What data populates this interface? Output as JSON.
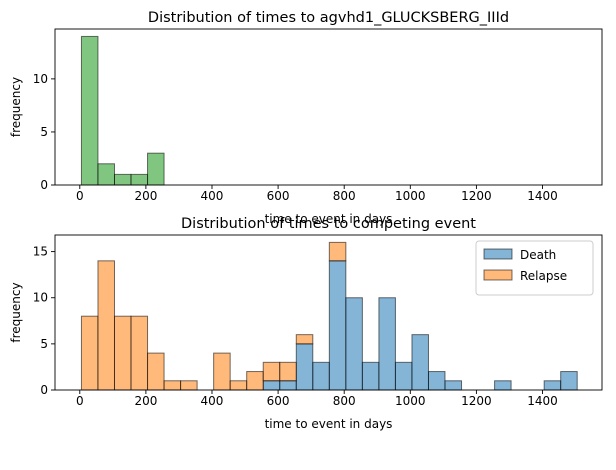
{
  "chart_data": [
    {
      "type": "bar",
      "title": "Distribution of times to agvhd1_GLUCKSBERG_IIId",
      "xlabel": "time to event in days",
      "ylabel": "frequency",
      "xlim": [
        -75,
        1580
      ],
      "ylim": [
        0,
        14.7
      ],
      "xticks": [
        0,
        200,
        400,
        600,
        800,
        1000,
        1200,
        1400
      ],
      "yticks": [
        0,
        5,
        10
      ],
      "bin_edges": [
        5,
        55,
        105,
        155,
        205,
        255,
        305,
        355,
        405,
        455,
        505,
        555,
        605,
        655,
        705,
        755,
        805,
        855,
        905,
        955,
        1005,
        1055,
        1105,
        1155,
        1205,
        1255,
        1305,
        1355,
        1405,
        1455,
        1505
      ],
      "series": [
        {
          "name": "",
          "color": "#2ca02c",
          "values": [
            14,
            2,
            1,
            1,
            3,
            0,
            0,
            0,
            0,
            0,
            0,
            0,
            0,
            0,
            0,
            0,
            0,
            0,
            0,
            0,
            0,
            0,
            0,
            0,
            0,
            0,
            0,
            0,
            0,
            0
          ]
        }
      ],
      "grid": false
    },
    {
      "type": "bar",
      "stacked": true,
      "title": "Distribution of times to competing event",
      "xlabel": "time to event in days",
      "ylabel": "frequency",
      "xlim": [
        -75,
        1580
      ],
      "ylim": [
        0,
        16.8
      ],
      "xticks": [
        0,
        200,
        400,
        600,
        800,
        1000,
        1200,
        1400
      ],
      "yticks": [
        0,
        5,
        10,
        15
      ],
      "bin_edges": [
        5,
        55,
        105,
        155,
        205,
        255,
        305,
        355,
        405,
        455,
        505,
        555,
        605,
        655,
        705,
        755,
        805,
        855,
        905,
        955,
        1005,
        1055,
        1105,
        1155,
        1205,
        1255,
        1305,
        1355,
        1405,
        1455,
        1505
      ],
      "series": [
        {
          "name": "Death",
          "color": "#1f77b4",
          "values": [
            0,
            0,
            0,
            0,
            0,
            0,
            0,
            0,
            0,
            0,
            0,
            1,
            1,
            5,
            3,
            14,
            10,
            3,
            10,
            3,
            6,
            2,
            1,
            0,
            0,
            1,
            0,
            0,
            1,
            2
          ]
        },
        {
          "name": "Relapse",
          "color": "#ff7f0e",
          "values": [
            8,
            14,
            8,
            8,
            4,
            1,
            1,
            0,
            4,
            1,
            2,
            2,
            2,
            1,
            0,
            2,
            0,
            0,
            0,
            0,
            0,
            0,
            0,
            0,
            0,
            0,
            0,
            0,
            0,
            0
          ]
        }
      ],
      "legend": "top-right",
      "grid": false
    }
  ]
}
